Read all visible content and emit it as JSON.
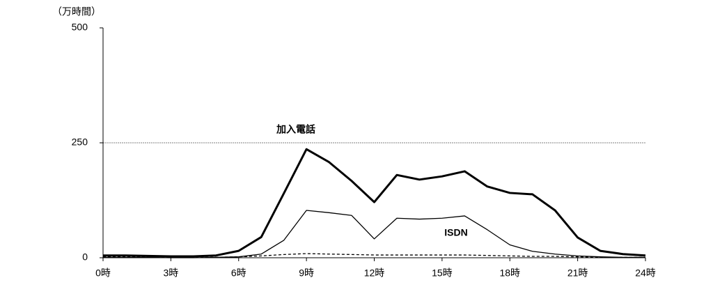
{
  "chart_data": {
    "type": "line",
    "y_axis_label": "（万時間）",
    "x": [
      0,
      1,
      2,
      3,
      4,
      5,
      6,
      7,
      8,
      9,
      10,
      11,
      12,
      13,
      14,
      15,
      16,
      17,
      18,
      19,
      20,
      21,
      22,
      23,
      24
    ],
    "series": [
      {
        "name": "加入電話",
        "color": "#000000",
        "width": 3,
        "dash": "none",
        "values": [
          5,
          5,
          4,
          3,
          3,
          5,
          15,
          45,
          140,
          236,
          208,
          167,
          121,
          180,
          170,
          177,
          188,
          155,
          141,
          138,
          103,
          44,
          15,
          8,
          5
        ]
      },
      {
        "name": "ISDN",
        "color": "#000000",
        "width": 1.3,
        "dash": "none",
        "values": [
          1,
          1,
          1,
          0,
          0,
          1,
          2,
          8,
          38,
          103,
          98,
          92,
          41,
          86,
          84,
          86,
          91,
          61,
          28,
          14,
          8,
          4,
          2,
          1,
          1
        ]
      },
      {
        "color": "#000000",
        "width": 1.3,
        "dash": "4,3",
        "values": [
          2,
          2,
          2,
          1,
          1,
          1,
          2,
          4,
          7,
          9,
          8,
          7,
          6,
          6,
          6,
          6,
          6,
          5,
          4,
          3,
          3,
          2,
          1,
          1,
          1
        ]
      }
    ],
    "xlim": [
      0,
      24
    ],
    "xticks": [
      {
        "value": 0,
        "label": "0時"
      },
      {
        "value": 3,
        "label": "3時"
      },
      {
        "value": 6,
        "label": "6時"
      },
      {
        "value": 9,
        "label": "9時"
      },
      {
        "value": 12,
        "label": "12時"
      },
      {
        "value": 15,
        "label": "15時"
      },
      {
        "value": 18,
        "label": "18時"
      },
      {
        "value": 21,
        "label": "21時"
      },
      {
        "value": 24,
        "label": "24時"
      }
    ],
    "ylim": [
      0,
      500
    ],
    "yticks": [
      0,
      250,
      500
    ],
    "grid": true
  }
}
